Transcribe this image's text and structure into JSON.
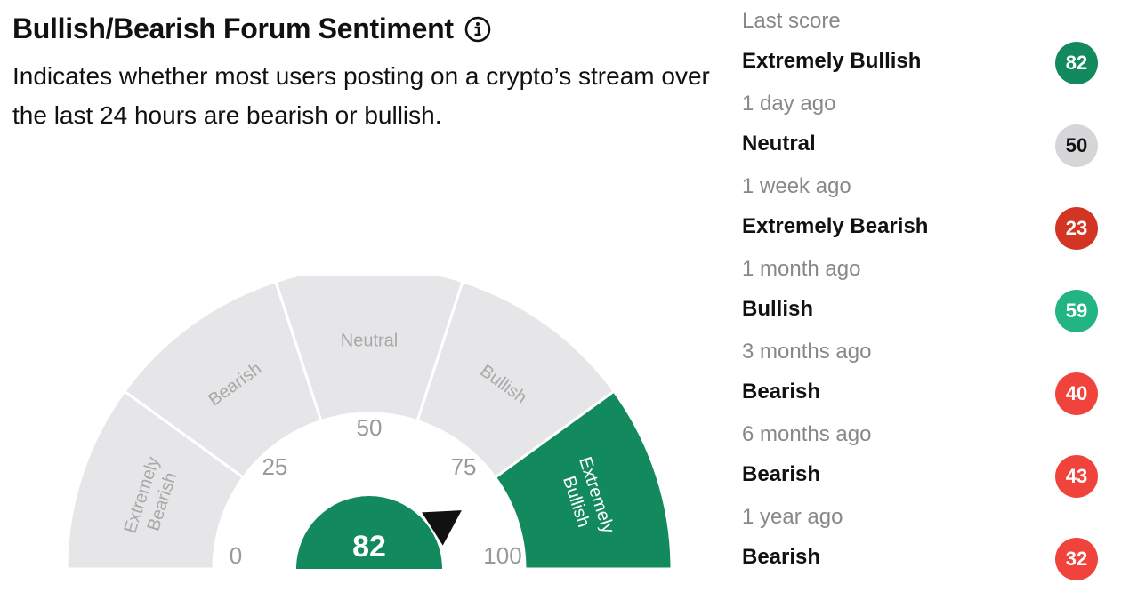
{
  "header": {
    "title": "Bullish/Bearish Forum Sentiment",
    "description": "Indicates whether most users posting on a crypto’s stream over the last 24 hours are bearish or bullish."
  },
  "gauge": {
    "value": 82,
    "segments": [
      {
        "label_lines": [
          "Extremely",
          "Bearish"
        ],
        "active": false
      },
      {
        "label_lines": [
          "Bearish"
        ],
        "active": false
      },
      {
        "label_lines": [
          "Neutral"
        ],
        "active": false
      },
      {
        "label_lines": [
          "Bullish"
        ],
        "active": false
      },
      {
        "label_lines": [
          "Extremely",
          "Bullish"
        ],
        "active": true
      }
    ],
    "ticks": [
      "0",
      "25",
      "50",
      "75",
      "100"
    ],
    "colors": {
      "active": "#138a5e",
      "inactive": "#e6e6e8",
      "inactive_text": "#a9a9a9",
      "tick_text": "#999999",
      "pointer": "#111111"
    }
  },
  "history": [
    {
      "time": "Last score",
      "label": "Extremely Bullish",
      "score": "82",
      "color": "#138a5e",
      "text_color": "#ffffff"
    },
    {
      "time": "1 day ago",
      "label": "Neutral",
      "score": "50",
      "color": "#d6d6d8",
      "text_color": "#111111"
    },
    {
      "time": "1 week ago",
      "label": "Extremely Bearish",
      "score": "23",
      "color": "#d33524",
      "text_color": "#ffffff"
    },
    {
      "time": "1 month ago",
      "label": "Bullish",
      "score": "59",
      "color": "#22b583",
      "text_color": "#ffffff"
    },
    {
      "time": "3 months ago",
      "label": "Bearish",
      "score": "40",
      "color": "#f0433c",
      "text_color": "#ffffff"
    },
    {
      "time": "6 months ago",
      "label": "Bearish",
      "score": "43",
      "color": "#f0433c",
      "text_color": "#ffffff"
    },
    {
      "time": "1 year ago",
      "label": "Bearish",
      "score": "32",
      "color": "#f0433c",
      "text_color": "#ffffff"
    }
  ]
}
